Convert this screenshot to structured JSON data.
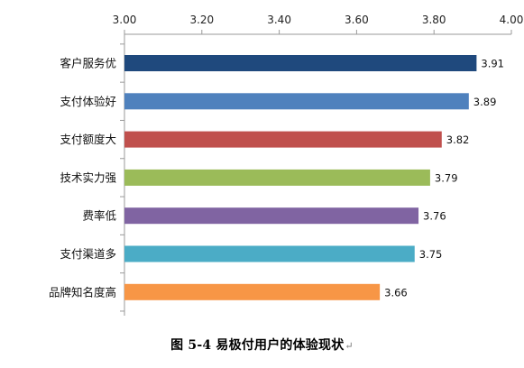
{
  "chart_data": {
    "type": "bar",
    "orientation": "horizontal",
    "categories": [
      "客户服务优",
      "支付体验好",
      "支付额度大",
      "技术实力强",
      "费率低",
      "支付渠道多",
      "品牌知名度高"
    ],
    "values": [
      3.91,
      3.89,
      3.82,
      3.79,
      3.76,
      3.75,
      3.66
    ],
    "value_labels": [
      "3.91",
      "3.89",
      "3.82",
      "3.79",
      "3.76",
      "3.75",
      "3.66"
    ],
    "colors": [
      "#1f497d",
      "#4f81bd",
      "#c0504d",
      "#9bbb59",
      "#8064a2",
      "#4bacc6",
      "#f79646"
    ],
    "xlim": [
      3.0,
      4.0
    ],
    "x_ticks": [
      "3.00",
      "3.20",
      "3.40",
      "3.60",
      "3.80",
      "4.00"
    ],
    "x_tick_values": [
      3.0,
      3.2,
      3.4,
      3.6,
      3.8,
      4.0
    ],
    "x_axis_position": "top",
    "grid": false,
    "legend": "none",
    "xlabel": "",
    "ylabel": ""
  },
  "caption": {
    "text": "图 5-4  易极付用户的体验现状",
    "return_mark": "↵"
  }
}
